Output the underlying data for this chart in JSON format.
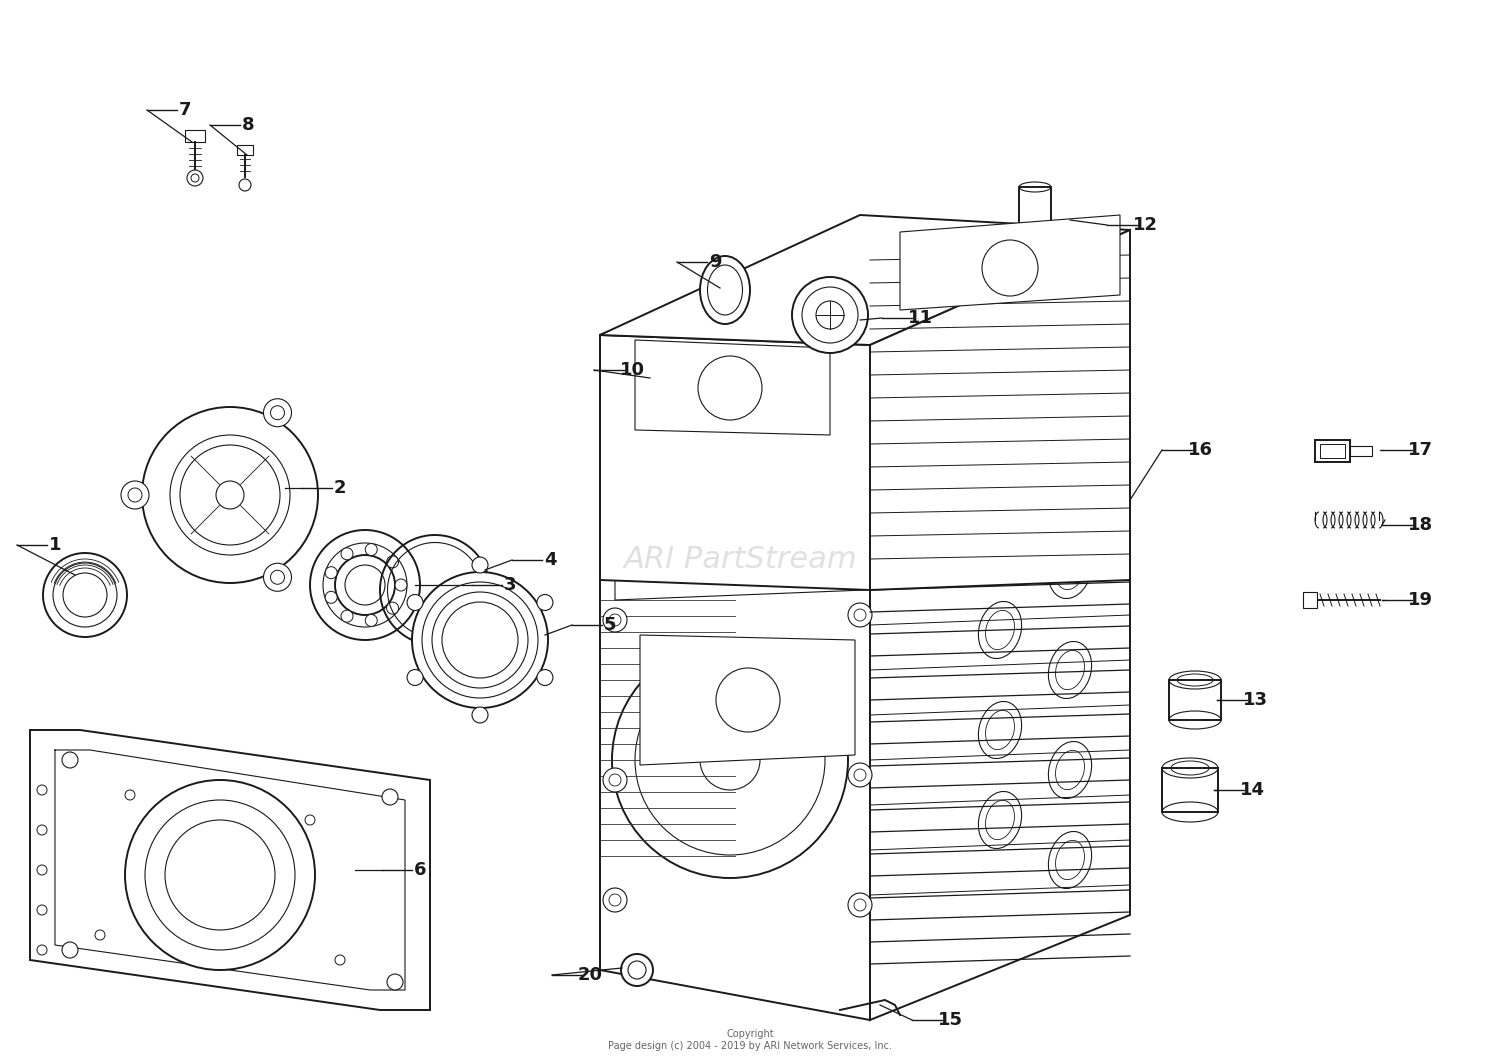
{
  "bg_color": "#ffffff",
  "lc": "#1a1a1a",
  "watermark_text": "ARI PartStream",
  "watermark_color": "#cccccc",
  "copyright_text": "Copyright\nPage design (c) 2004 - 2019 by ARI Network Services, Inc.",
  "figsize": [
    15.0,
    10.62
  ],
  "dpi": 100
}
